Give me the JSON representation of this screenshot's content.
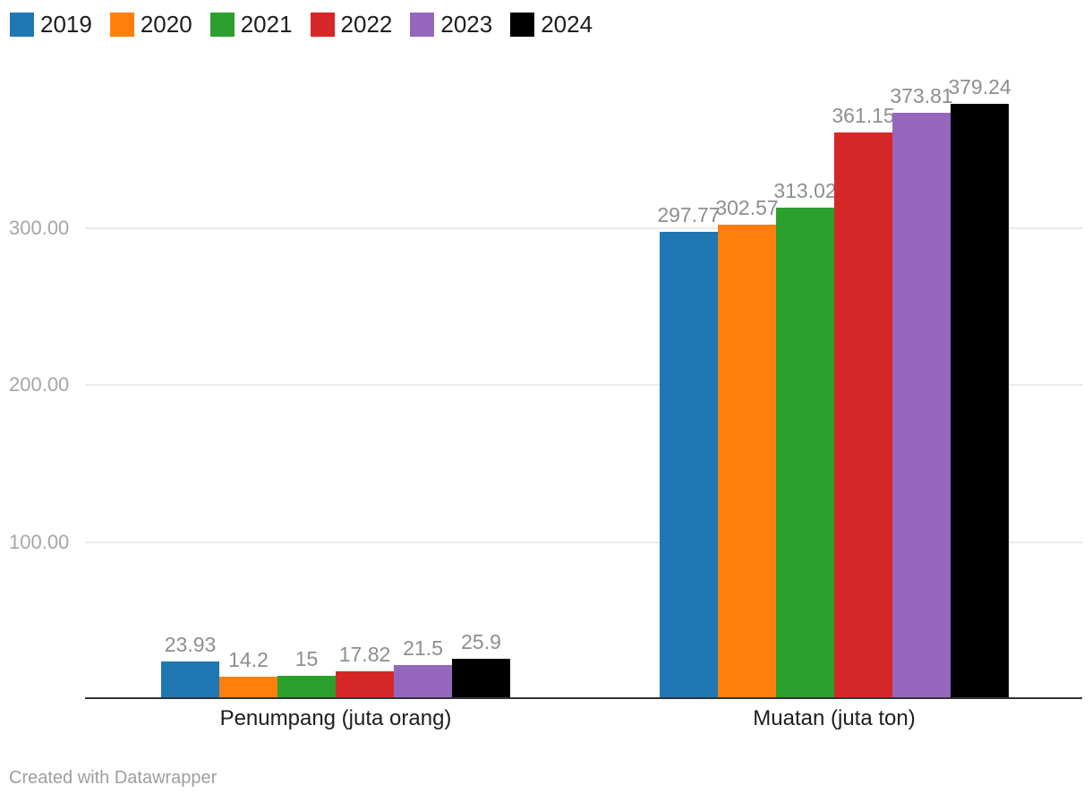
{
  "legend": {
    "items": [
      {
        "label": "2019",
        "color": "#1f77b4"
      },
      {
        "label": "2020",
        "color": "#ff7f0e"
      },
      {
        "label": "2021",
        "color": "#2ca02c"
      },
      {
        "label": "2022",
        "color": "#d62728"
      },
      {
        "label": "2023",
        "color": "#9467bd"
      },
      {
        "label": "2024",
        "color": "#000000"
      }
    ]
  },
  "chart_data": {
    "type": "bar",
    "categories": [
      "Penumpang (juta orang)",
      "Muatan (juta ton)"
    ],
    "series": [
      {
        "name": "2019",
        "color": "#1f77b4",
        "values": [
          23.93,
          297.77
        ],
        "labels": [
          "23.93",
          "297.77"
        ]
      },
      {
        "name": "2020",
        "color": "#ff7f0e",
        "values": [
          14.2,
          302.57
        ],
        "labels": [
          "14.2",
          "302.57"
        ]
      },
      {
        "name": "2021",
        "color": "#2ca02c",
        "values": [
          15,
          313.02
        ],
        "labels": [
          "15",
          "313.02"
        ]
      },
      {
        "name": "2022",
        "color": "#d62728",
        "values": [
          17.82,
          361.15
        ],
        "labels": [
          "17.82",
          "361.15"
        ]
      },
      {
        "name": "2023",
        "color": "#9467bd",
        "values": [
          21.5,
          373.81
        ],
        "labels": [
          "21.5",
          "373.81"
        ]
      },
      {
        "name": "2024",
        "color": "#000000",
        "values": [
          25.9,
          379.24
        ],
        "labels": [
          "25.9",
          "379.24"
        ]
      }
    ],
    "y_ticks": [
      {
        "value": 100,
        "label": "100.00"
      },
      {
        "value": 200,
        "label": "200.00"
      },
      {
        "value": 300,
        "label": "300.00"
      }
    ],
    "ylim": [
      0,
      394
    ],
    "grid": true,
    "legend_position": "top-left",
    "value_labels_shown": true
  },
  "footer": {
    "credit": "Created with Datawrapper"
  }
}
